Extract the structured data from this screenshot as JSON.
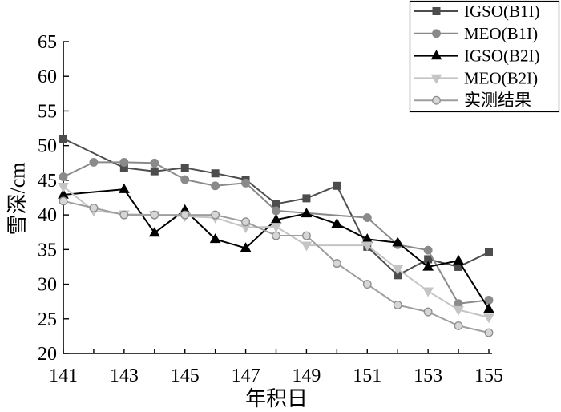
{
  "chart_data": {
    "type": "line",
    "xlabel": "年积日",
    "ylabel": "雪深/cm",
    "xlim": [
      141,
      155
    ],
    "ylim": [
      20,
      65
    ],
    "xticks": [
      141,
      143,
      145,
      147,
      149,
      151,
      153,
      155
    ],
    "yticks": [
      20,
      25,
      30,
      35,
      40,
      45,
      50,
      55,
      60,
      65
    ],
    "grid": false,
    "legend": "top-right",
    "x": [
      141,
      142,
      143,
      144,
      145,
      146,
      147,
      148,
      149,
      150,
      151,
      152,
      153,
      154,
      155
    ],
    "series": [
      {
        "name": "IGSO(B1I)",
        "color": "#4d4d4d",
        "marker": "square",
        "values": [
          51.0,
          null,
          46.8,
          46.3,
          46.8,
          46.0,
          45.1,
          41.6,
          42.4,
          44.2,
          35.4,
          31.3,
          33.6,
          32.5,
          34.6
        ]
      },
      {
        "name": "MEO(B1I)",
        "color": "#8a8a8a",
        "marker": "circle",
        "values": [
          45.5,
          47.6,
          47.6,
          47.5,
          45.1,
          44.2,
          44.6,
          40.6,
          null,
          null,
          39.6,
          35.7,
          34.9,
          27.2,
          27.7
        ]
      },
      {
        "name": "IGSO(B2I)",
        "color": "#000000",
        "marker": "triangle-up",
        "values": [
          42.9,
          null,
          43.7,
          37.4,
          40.7,
          36.5,
          35.2,
          39.3,
          40.2,
          38.7,
          36.5,
          36.0,
          32.5,
          33.4,
          26.4
        ]
      },
      {
        "name": "MEO(B2I)",
        "color": "#c4c4c4",
        "marker": "triangle-down",
        "values": [
          44.1,
          40.6,
          40.1,
          40.0,
          39.8,
          39.6,
          38.2,
          38.3,
          35.6,
          null,
          35.6,
          32.2,
          29.0,
          26.3,
          25.2
        ]
      },
      {
        "name": "实测结果",
        "color": "#9e9e9e",
        "marker": "circle",
        "marker_fill": "#d6d6d6",
        "marker_edge": "#8c8c8c",
        "values": [
          42,
          41,
          40,
          40,
          40,
          40,
          39,
          37,
          37,
          33,
          30,
          27,
          26,
          24,
          23
        ]
      }
    ]
  }
}
